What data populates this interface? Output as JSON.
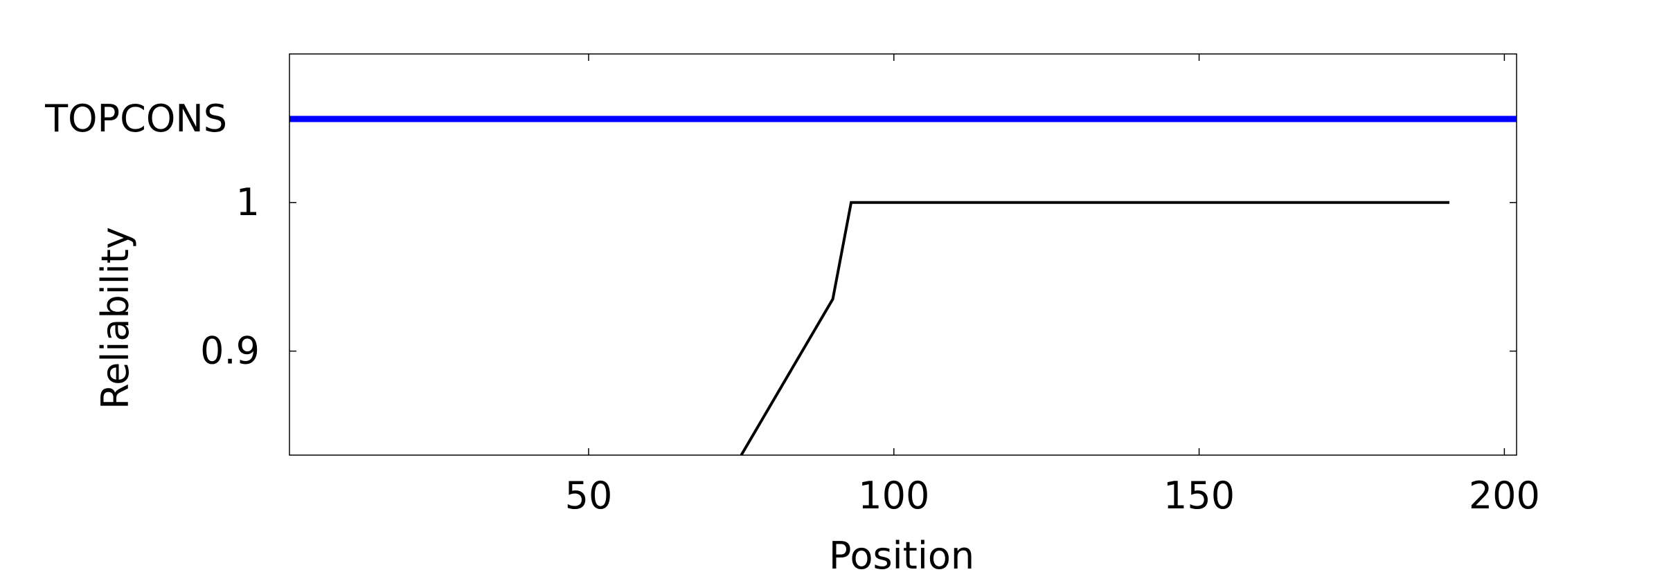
{
  "chart_data": {
    "type": "line",
    "title": "",
    "xlabel": "Position",
    "ylabel": "Reliability",
    "xlim": [
      1,
      202
    ],
    "ylim": [
      0.83,
      1.1
    ],
    "x_ticks": [
      50,
      100,
      150,
      200
    ],
    "y_ticks": [
      0.9,
      1
    ],
    "track_label": "TOPCONS",
    "track_color": "#0000ff",
    "series": [
      {
        "color": "#000000",
        "x": [
          75,
          80,
          85,
          90,
          93,
          100,
          120,
          140,
          160,
          180,
          191
        ],
        "y": [
          0.83,
          0.865,
          0.9,
          0.935,
          1.0,
          1.0,
          1.0,
          1.0,
          1.0,
          1.0,
          1.0
        ]
      }
    ]
  }
}
